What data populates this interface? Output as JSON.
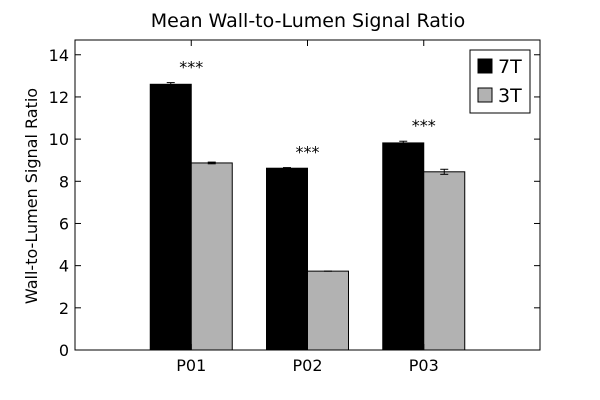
{
  "chart_data": {
    "type": "bar",
    "title": "Mean Wall-to-Lumen Signal Ratio",
    "xlabel": "",
    "ylabel": "Wall-to-Lumen Signal Ratio",
    "categories": [
      "P01",
      "P02",
      "P03"
    ],
    "series": [
      {
        "name": "7T",
        "values": [
          12.6,
          8.62,
          9.82
        ],
        "errors": [
          0.08,
          0.03,
          0.08
        ],
        "color": "#000000"
      },
      {
        "name": "3T",
        "values": [
          8.87,
          3.74,
          8.45
        ],
        "errors": [
          0.04,
          0.0,
          0.12
        ],
        "color": "#b2b2b2"
      }
    ],
    "significance": [
      "***",
      "***",
      "***"
    ],
    "ylim": [
      0,
      14.7
    ],
    "yticks": [
      0,
      2,
      4,
      6,
      8,
      10,
      12,
      14
    ],
    "grid": false,
    "legend_position": "top-right"
  }
}
